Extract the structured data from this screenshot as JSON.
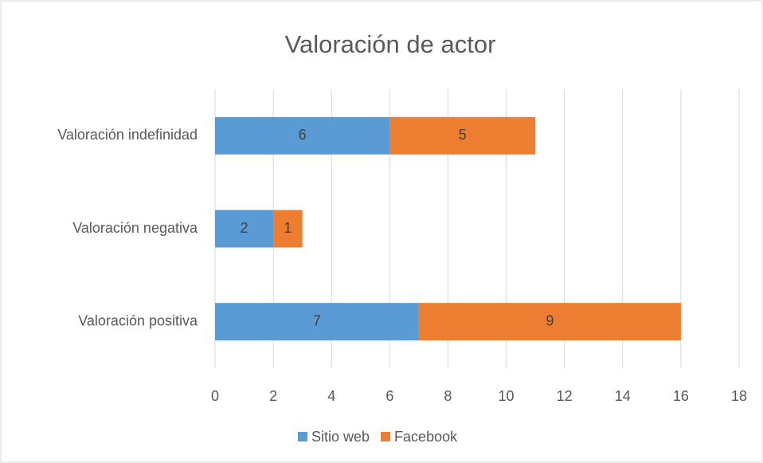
{
  "chart_data": {
    "type": "stacked-bar-horizontal",
    "title": "Valoración de actor",
    "categories": [
      "Valoración indefinidad",
      "Valoración negativa",
      "Valoración positiva"
    ],
    "series": [
      {
        "name": "Sitio web",
        "color": "#5b9bd5",
        "values": [
          6,
          2,
          7
        ]
      },
      {
        "name": "Facebook",
        "color": "#ed7d31",
        "values": [
          5,
          1,
          9
        ]
      }
    ],
    "xlim": [
      0,
      18
    ],
    "xticks": [
      0,
      2,
      4,
      6,
      8,
      10,
      12,
      14,
      16,
      18
    ],
    "grid": true,
    "legend": "bottom"
  }
}
